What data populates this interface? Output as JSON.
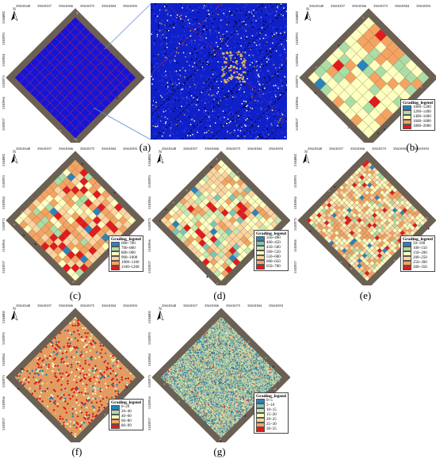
{
  "captions": [
    "(a)",
    "(b)",
    "(c)",
    "(d)",
    "(e)",
    "(f)",
    "(g)"
  ],
  "x_ticks": [
    "35610348",
    "35610357",
    "35610366",
    "35610375",
    "35610384",
    "35610393"
  ],
  "y_ticks": [
    "5184002",
    "5183993",
    "5183984",
    "5183975",
    "5183966",
    "5183957"
  ],
  "north_label": "N",
  "legend_title": "Grading_legend",
  "legends": {
    "b": [
      {
        "label": "1000~1200",
        "color": "#2b83ba"
      },
      {
        "label": "1200~1400",
        "color": "#abdda4"
      },
      {
        "label": "1400~1600",
        "color": "#ffffbf"
      },
      {
        "label": "1600~1800",
        "color": "#f4a460"
      },
      {
        "label": "1800~2000",
        "color": "#e31a1c"
      }
    ],
    "c": [
      {
        "label": "600~700",
        "color": "#2b83ba"
      },
      {
        "label": "700~800",
        "color": "#abdda4"
      },
      {
        "label": "800~900",
        "color": "#ffffbf"
      },
      {
        "label": "900~1000",
        "color": "#fdd49e"
      },
      {
        "label": "1000~1100",
        "color": "#f4a460"
      },
      {
        "label": "1100~1200",
        "color": "#e31a1c"
      }
    ],
    "d": [
      {
        "label": "350~400",
        "color": "#2b83ba"
      },
      {
        "label": "400~450",
        "color": "#80c4b7"
      },
      {
        "label": "450~500",
        "color": "#c7e9ad"
      },
      {
        "label": "500~550",
        "color": "#ffffbf"
      },
      {
        "label": "550~600",
        "color": "#fdd49e"
      },
      {
        "label": "600~650",
        "color": "#f4a460"
      },
      {
        "label": "650~700",
        "color": "#e31a1c"
      }
    ],
    "e": [
      {
        "label": "50~100",
        "color": "#2b83ba"
      },
      {
        "label": "100~150",
        "color": "#abdda4"
      },
      {
        "label": "150~200",
        "color": "#ffffbf"
      },
      {
        "label": "200~250",
        "color": "#fdd49e"
      },
      {
        "label": "250~300",
        "color": "#f4a460"
      },
      {
        "label": "300~350",
        "color": "#e31a1c"
      }
    ],
    "f": [
      {
        "label": "0~20",
        "color": "#2b83ba"
      },
      {
        "label": "20~40",
        "color": "#abdda4"
      },
      {
        "label": "40~60",
        "color": "#ffffbf"
      },
      {
        "label": "60~80",
        "color": "#f4a460"
      },
      {
        "label": "80~99",
        "color": "#e31a1c"
      }
    ],
    "g": [
      {
        "label": "0~5",
        "color": "#2b83ba"
      },
      {
        "label": "5~10",
        "color": "#80c4b7"
      },
      {
        "label": "10~15",
        "color": "#c7e9ad"
      },
      {
        "label": "15~20",
        "color": "#ffffbf"
      },
      {
        "label": "20~25",
        "color": "#fdd49e"
      },
      {
        "label": "25~30",
        "color": "#f4a460"
      },
      {
        "label": "30~35",
        "color": "#e31a1c"
      }
    ]
  }
}
